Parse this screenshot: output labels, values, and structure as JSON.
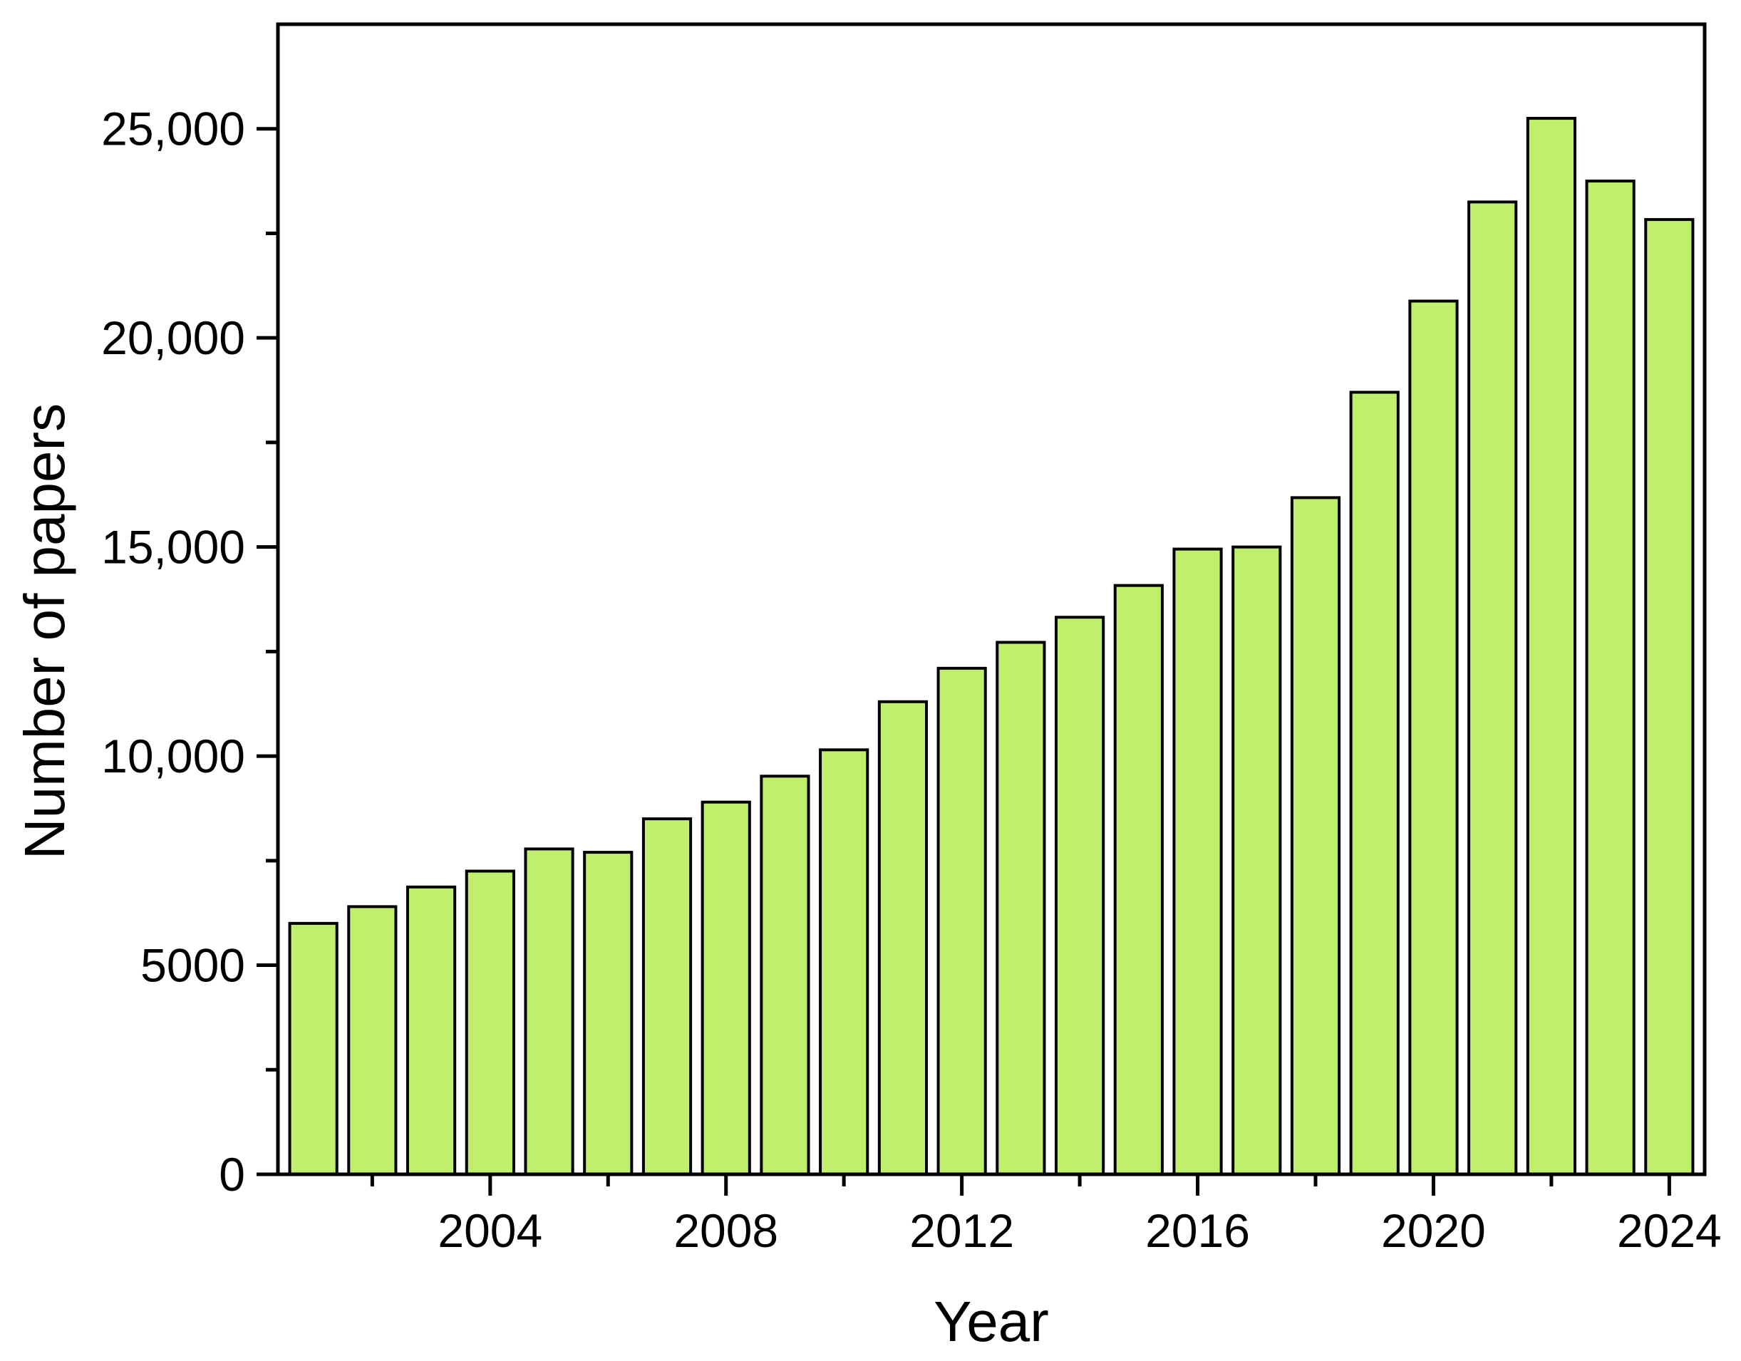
{
  "chart_data": {
    "type": "bar",
    "title": "",
    "xlabel": "Year",
    "ylabel": "Number of papers",
    "categories": [
      2001,
      2002,
      2003,
      2004,
      2005,
      2006,
      2007,
      2008,
      2009,
      2010,
      2011,
      2012,
      2013,
      2014,
      2015,
      2016,
      2017,
      2018,
      2019,
      2020,
      2021,
      2022,
      2023,
      2024
    ],
    "values": [
      6000,
      6400,
      6870,
      7250,
      7780,
      7700,
      8500,
      8900,
      9520,
      10150,
      11300,
      12100,
      12720,
      13320,
      14080,
      14950,
      15000,
      16180,
      18700,
      20880,
      23250,
      25250,
      23750,
      22830
    ],
    "xlim": [
      2000.4,
      2024.6
    ],
    "ylim": [
      0,
      27500
    ],
    "x_ticks": [
      2004,
      2008,
      2012,
      2016,
      2020,
      2024
    ],
    "x_tick_labels": [
      "2004",
      "2008",
      "2012",
      "2016",
      "2020",
      "2024"
    ],
    "x_minor_ticks": [
      2002,
      2006,
      2010,
      2014,
      2018,
      2022
    ],
    "y_ticks": [
      0,
      5000,
      10000,
      15000,
      20000,
      25000
    ],
    "y_tick_labels": [
      "0",
      "5000",
      "10,000",
      "15,000",
      "20,000",
      "25,000"
    ],
    "y_minor_ticks": [
      2500,
      7500,
      12500,
      17500,
      22500
    ],
    "bar_color": "#bfef6c",
    "bar_edge_color": "#000000",
    "axis_color": "#000000",
    "grid": false,
    "legend": "none",
    "frame": "box"
  }
}
